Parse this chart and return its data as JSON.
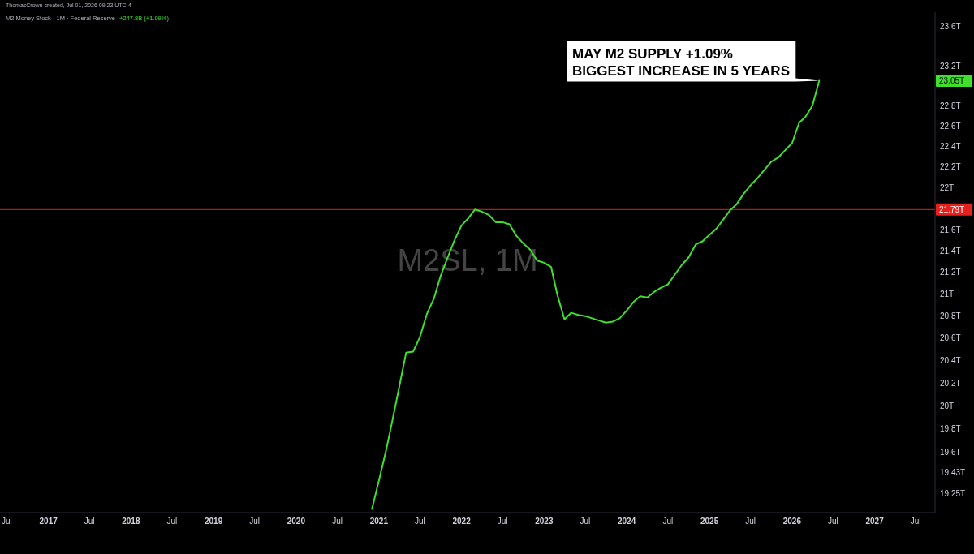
{
  "chart_data": {
    "type": "line",
    "title": "M2 Money Stock · 1M · Federal Reserve",
    "subtitle": "+247.8B (+1.09%)",
    "annotations": [
      "ThomasCrown created, Jul 01, 2026 09:23 UTC-4",
      "M2SL, 1M",
      "23.05T",
      {
        "text": "MAY M2 SUPPLY +1.09%\nBIGGEST INCREASE IN 5 YEARS",
        "x": "2026-05",
        "y": 23.05
      }
    ],
    "x": [
      "2020-12",
      "2021-01",
      "2021-02",
      "2021-03",
      "2021-04",
      "2021-05",
      "2021-06",
      "2021-07",
      "2021-08",
      "2021-09",
      "2021-10",
      "2021-11",
      "2021-12",
      "2022-01",
      "2022-02",
      "2022-03",
      "2022-04",
      "2022-05",
      "2022-06",
      "2022-07",
      "2022-08",
      "2022-09",
      "2022-10",
      "2022-11",
      "2022-12",
      "2023-01",
      "2023-02",
      "2023-03",
      "2023-04",
      "2023-05",
      "2023-06",
      "2023-07",
      "2023-08",
      "2023-09",
      "2023-10",
      "2023-11",
      "2023-12",
      "2024-01",
      "2024-02",
      "2024-03",
      "2024-04",
      "2024-05",
      "2024-06",
      "2024-07",
      "2024-08",
      "2024-09",
      "2024-10",
      "2024-11",
      "2024-12",
      "2025-01",
      "2025-02",
      "2025-03",
      "2025-04",
      "2025-05",
      "2025-06",
      "2025-07",
      "2025-08",
      "2025-09",
      "2025-10",
      "2025-11",
      "2025-12",
      "2026-01",
      "2026-02",
      "2026-03",
      "2026-04",
      "2026-05"
    ],
    "series": [
      {
        "color": "#3fe02c",
        "values": [
          19.12,
          19.36,
          19.61,
          19.87,
          20.17,
          20.47,
          20.48,
          20.61,
          20.82,
          20.96,
          21.17,
          21.34,
          21.5,
          21.64,
          21.71,
          21.79,
          21.77,
          21.74,
          21.67,
          21.67,
          21.65,
          21.54,
          21.47,
          21.41,
          21.31,
          21.29,
          21.25,
          20.99,
          20.77,
          20.83,
          20.81,
          20.8,
          20.78,
          20.76,
          20.74,
          20.75,
          20.78,
          20.85,
          20.93,
          20.98,
          20.97,
          21.02,
          21.06,
          21.09,
          21.18,
          21.27,
          21.34,
          21.46,
          21.49,
          21.55,
          21.61,
          21.69,
          21.78,
          21.84,
          21.94,
          22.02,
          22.09,
          22.17,
          22.25,
          22.29,
          22.36,
          22.43,
          22.63,
          22.69,
          22.8,
          23.05
        ]
      }
    ],
    "xlim": [
      "2016-06-01",
      "2027-09-25"
    ],
    "xticks": [
      {
        "value": "2016-07",
        "label": "Jul"
      },
      {
        "value": "2017-01",
        "label": "2017"
      },
      {
        "value": "2017-07",
        "label": "Jul"
      },
      {
        "value": "2018-01",
        "label": "2018"
      },
      {
        "value": "2018-07",
        "label": "Jul"
      },
      {
        "value": "2019-01",
        "label": "2019"
      },
      {
        "value": "2019-07",
        "label": "Jul"
      },
      {
        "value": "2020-01",
        "label": "2020"
      },
      {
        "value": "2020-07",
        "label": "Jul"
      },
      {
        "value": "2021-01",
        "label": "2021"
      },
      {
        "value": "2021-07",
        "label": "Jul"
      },
      {
        "value": "2022-01",
        "label": "2022"
      },
      {
        "value": "2022-07",
        "label": "Jul"
      },
      {
        "value": "2023-01",
        "label": "2023"
      },
      {
        "value": "2023-07",
        "label": "Jul"
      },
      {
        "value": "2024-01",
        "label": "2024"
      },
      {
        "value": "2024-07",
        "label": "Jul"
      },
      {
        "value": "2025-01",
        "label": "2025"
      },
      {
        "value": "2025-07",
        "label": "Jul"
      },
      {
        "value": "2026-01",
        "label": "2026"
      },
      {
        "value": "2026-07",
        "label": "Jul"
      },
      {
        "value": "2027-01",
        "label": "2027"
      },
      {
        "value": "2027-07",
        "label": "Jul"
      }
    ],
    "ylim": [
      19.09,
      23.75
    ],
    "yticks": [
      {
        "value": 19.25,
        "label": "19.25T"
      },
      {
        "value": 19.43,
        "label": "19.43T"
      },
      {
        "value": 19.6,
        "label": "19.6T"
      },
      {
        "value": 19.8,
        "label": "19.8T"
      },
      {
        "value": 20,
        "label": "20T"
      },
      {
        "value": 20.2,
        "label": "20.2T"
      },
      {
        "value": 20.4,
        "label": "20.4T"
      },
      {
        "value": 20.6,
        "label": "20.6T"
      },
      {
        "value": 20.8,
        "label": "20.8T"
      },
      {
        "value": 21,
        "label": "21T"
      },
      {
        "value": 21.2,
        "label": "21.2T"
      },
      {
        "value": 21.4,
        "label": "21.4T"
      },
      {
        "value": 21.6,
        "label": "21.6T"
      },
      {
        "value": 22,
        "label": "22T"
      },
      {
        "value": 22.2,
        "label": "22.2T"
      },
      {
        "value": 22.4,
        "label": "22.4T"
      },
      {
        "value": 22.6,
        "label": "22.6T"
      },
      {
        "value": 22.8,
        "label": "22.8T"
      },
      {
        "value": 23.2,
        "label": "23.2T"
      },
      {
        "value": 23.6,
        "label": "23.6T"
      }
    ],
    "log": true,
    "ref_lines": [
      {
        "axis": "y",
        "value": 21.79,
        "label": "21.79T",
        "color": "#e5201d"
      }
    ]
  }
}
